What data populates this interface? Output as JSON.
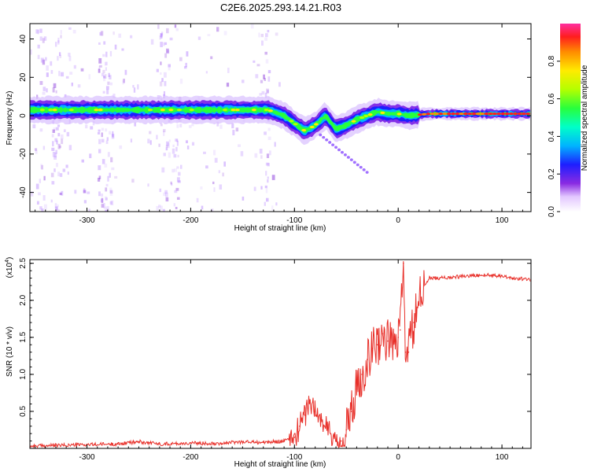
{
  "title": "C2E6.2025.293.14.21.R03",
  "chart_data": [
    {
      "type": "heatmap",
      "name": "spectrogram",
      "xlabel": "Height of straight line (km)",
      "ylabel": "Frequency (Hz)",
      "xlim": [
        -355,
        128
      ],
      "ylim": [
        -50,
        48
      ],
      "xticks": [
        -300,
        -200,
        -100,
        0,
        100
      ],
      "xtick_labels": [
        "-300",
        "-200",
        "-100",
        "0",
        "100"
      ],
      "yticks": [
        -40,
        -20,
        0,
        20,
        40
      ],
      "ytick_labels": [
        "-40",
        "-20",
        "0",
        "20",
        "40"
      ],
      "ridge": {
        "description": "dominant frequency trace vs height",
        "x": [
          -355,
          -300,
          -250,
          -200,
          -150,
          -125,
          -110,
          -100,
          -90,
          -80,
          -70,
          -60,
          -50,
          -40,
          -30,
          -20,
          -10,
          0,
          10,
          30,
          60,
          90,
          128
        ],
        "y": [
          3,
          3,
          3,
          3,
          3,
          3,
          0,
          -4,
          -8,
          -5,
          0,
          -7,
          -5,
          -2,
          0,
          2,
          1,
          1,
          0,
          1,
          1,
          1,
          1
        ]
      },
      "colorbar": {
        "label": "Normalized spectral amplitude",
        "range": [
          0,
          1
        ],
        "ticks": [
          0.0,
          0.2,
          0.4,
          0.6,
          0.8
        ],
        "tick_labels": [
          "0.0",
          "0.2",
          "0.4",
          "0.6",
          "0.8"
        ]
      }
    },
    {
      "type": "line",
      "name": "snr",
      "xlabel": "Height of straight line (km)",
      "ylabel": "SNR (10 * v/v)",
      "exponent_label": "(x10",
      "exponent_power": "4",
      "exponent_close": ")",
      "xlim": [
        -355,
        128
      ],
      "ylim": [
        0,
        2.55
      ],
      "xticks": [
        -300,
        -200,
        -100,
        0,
        100
      ],
      "xtick_labels": [
        "-300",
        "-200",
        "-100",
        "0",
        "100"
      ],
      "yticks": [
        0.5,
        1.0,
        1.5,
        2.0,
        2.5
      ],
      "ytick_labels": [
        "0.5",
        "1.0",
        "1.5",
        "2.0",
        "2.5"
      ],
      "color": "#e8302a",
      "series": [
        {
          "name": "SNR",
          "x": [
            -355,
            -330,
            -300,
            -270,
            -250,
            -230,
            -200,
            -170,
            -150,
            -130,
            -110,
            -100,
            -95,
            -90,
            -85,
            -80,
            -75,
            -70,
            -65,
            -60,
            -55,
            -50,
            -45,
            -40,
            -35,
            -30,
            -25,
            -20,
            -15,
            -10,
            -5,
            0,
            2,
            5,
            7,
            10,
            15,
            20,
            25,
            30,
            40,
            50,
            60,
            70,
            80,
            90,
            100,
            110,
            128
          ],
          "y": [
            0.03,
            0.04,
            0.05,
            0.06,
            0.09,
            0.06,
            0.07,
            0.07,
            0.09,
            0.08,
            0.1,
            0.15,
            0.3,
            0.45,
            0.65,
            0.5,
            0.4,
            0.3,
            0.2,
            0.1,
            0.1,
            0.25,
            0.5,
            0.8,
            1.0,
            1.2,
            1.35,
            1.4,
            1.55,
            1.45,
            1.4,
            1.5,
            1.6,
            2.5,
            1.3,
            1.3,
            1.7,
            1.95,
            2.2,
            2.3,
            2.3,
            2.31,
            2.32,
            2.33,
            2.34,
            2.34,
            2.33,
            2.3,
            2.28
          ]
        }
      ]
    }
  ]
}
